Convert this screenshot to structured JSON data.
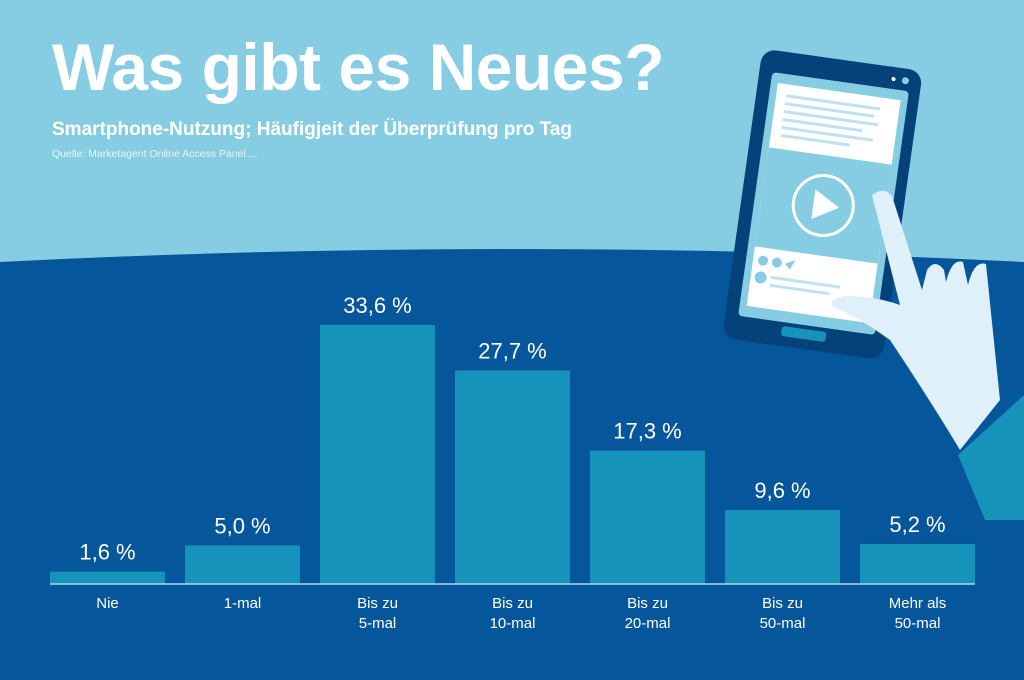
{
  "header": {
    "title": "Was gibt es Neues?",
    "subtitle": "Smartphone-Nutzung; Häufigjeit der Überprüfung pro Tag",
    "source": "Quelle: Marketagent Online Access Panel ..."
  },
  "colors": {
    "sky": "#86cde4",
    "navy": "#05569a",
    "bar": "#1593bb",
    "text": "#ffffff",
    "hand": "#dff0fb",
    "device": "#06427a"
  },
  "illustration": {
    "description": "hand-holding-tablet-with-video-play-icon",
    "icons": [
      "tablet-icon",
      "play-icon",
      "heart-icon",
      "comment-icon",
      "send-icon",
      "hand-icon"
    ]
  },
  "chart_data": {
    "type": "bar",
    "title": "Smartphone-Nutzung; Häufigjeit der Überprüfung pro Tag",
    "xlabel": "",
    "ylabel": "",
    "ylim": [
      0,
      40
    ],
    "grid": false,
    "unit": "%",
    "categories": [
      [
        "Nie"
      ],
      [
        "1-mal"
      ],
      [
        "Bis zu",
        "5-mal"
      ],
      [
        "Bis zu",
        "10-mal"
      ],
      [
        "Bis zu",
        "20-mal"
      ],
      [
        "Bis zu",
        "50-mal"
      ],
      [
        "Mehr als",
        "50-mal"
      ]
    ],
    "values": [
      1.6,
      5.0,
      33.6,
      27.7,
      17.3,
      9.6,
      5.2
    ],
    "value_labels": [
      "1,6 %",
      "5,0 %",
      "33,6 %",
      "27,7 %",
      "17,3 %",
      "9,6 %",
      "5,2 %"
    ]
  }
}
